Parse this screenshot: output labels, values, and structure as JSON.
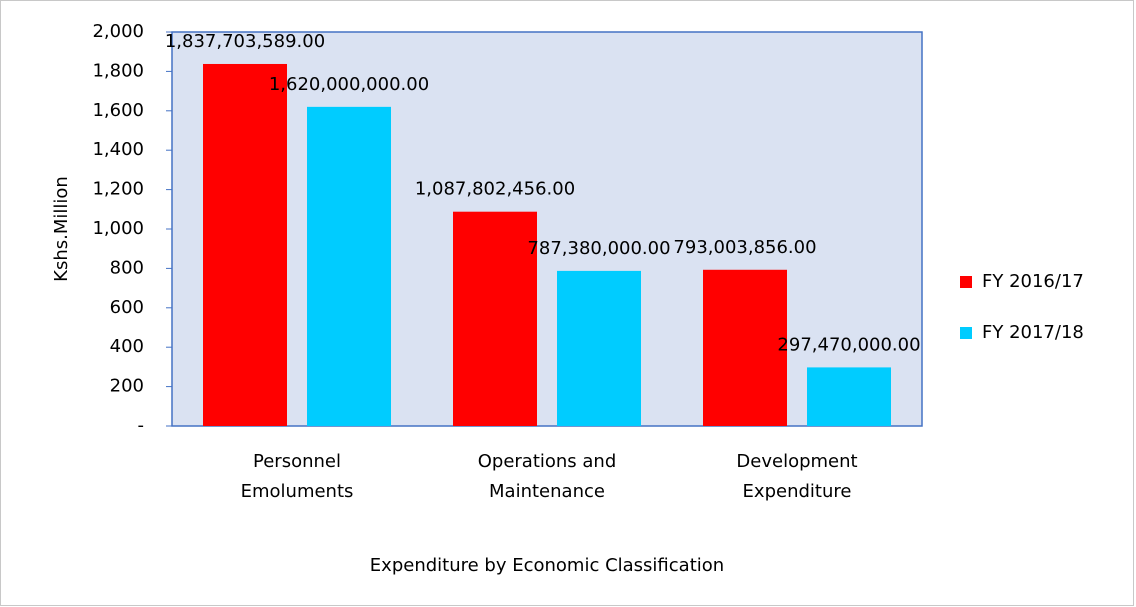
{
  "chart_data": {
    "type": "bar",
    "y_label": "Kshs.Million",
    "x_label": "Expenditure by Economic Classification",
    "categories": [
      "Personnel\nEmoluments",
      "Operations and\nMaintenance",
      "Development\nExpenditure"
    ],
    "series": [
      {
        "name": "FY 2016/17",
        "color": "#ff0000",
        "values": [
          1837.703589,
          1087.802456,
          793.003856
        ],
        "value_labels": [
          "1,837,703,589.00",
          "1,087,802,456.00",
          "793,003,856.00"
        ]
      },
      {
        "name": "FY 2017/18",
        "color": "#00ccff",
        "values": [
          1620,
          787.38,
          297.47
        ],
        "value_labels": [
          "1,620,000,000.00",
          "787,380,000.00",
          "297,470,000.00"
        ]
      }
    ],
    "ylim": [
      0,
      2000
    ],
    "yticks": [
      {
        "value": 0,
        "label": "-"
      },
      200,
      400,
      600,
      800,
      {
        "value": 1000,
        "label": "1,000"
      },
      {
        "value": 1200,
        "label": "1,200"
      },
      {
        "value": 1400,
        "label": "1,400"
      },
      {
        "value": 1600,
        "label": "1,600"
      },
      {
        "value": 1800,
        "label": "1,800"
      },
      {
        "value": 2000,
        "label": "2,000"
      }
    ],
    "legend": "right"
  }
}
